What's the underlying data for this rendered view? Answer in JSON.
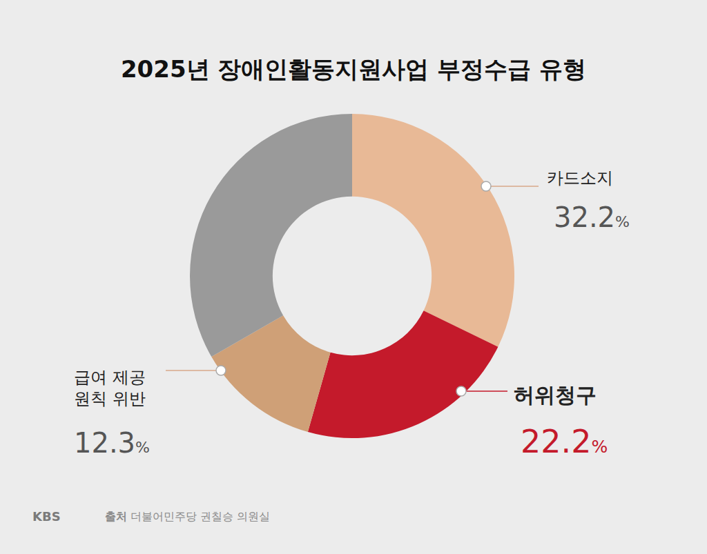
{
  "chart_data": {
    "type": "pie",
    "title": "2025년 장애인활동지원사업 부정수급 유형",
    "categories": [
      "카드소지",
      "허위청구",
      "급여 제공 원칙 위반",
      null
    ],
    "values": [
      32.2,
      22.2,
      12.3,
      33.3
    ],
    "value_labels": [
      "32.2%",
      "22.2%",
      "12.3%",
      null
    ],
    "colors": [
      "#e8b996",
      "#c41a2b",
      "#cfa077",
      "#9a9a9a"
    ],
    "data_labels": true,
    "logo": "KBS",
    "source_label": "출처",
    "source": "더불어민주당 권칠승 의원실"
  }
}
